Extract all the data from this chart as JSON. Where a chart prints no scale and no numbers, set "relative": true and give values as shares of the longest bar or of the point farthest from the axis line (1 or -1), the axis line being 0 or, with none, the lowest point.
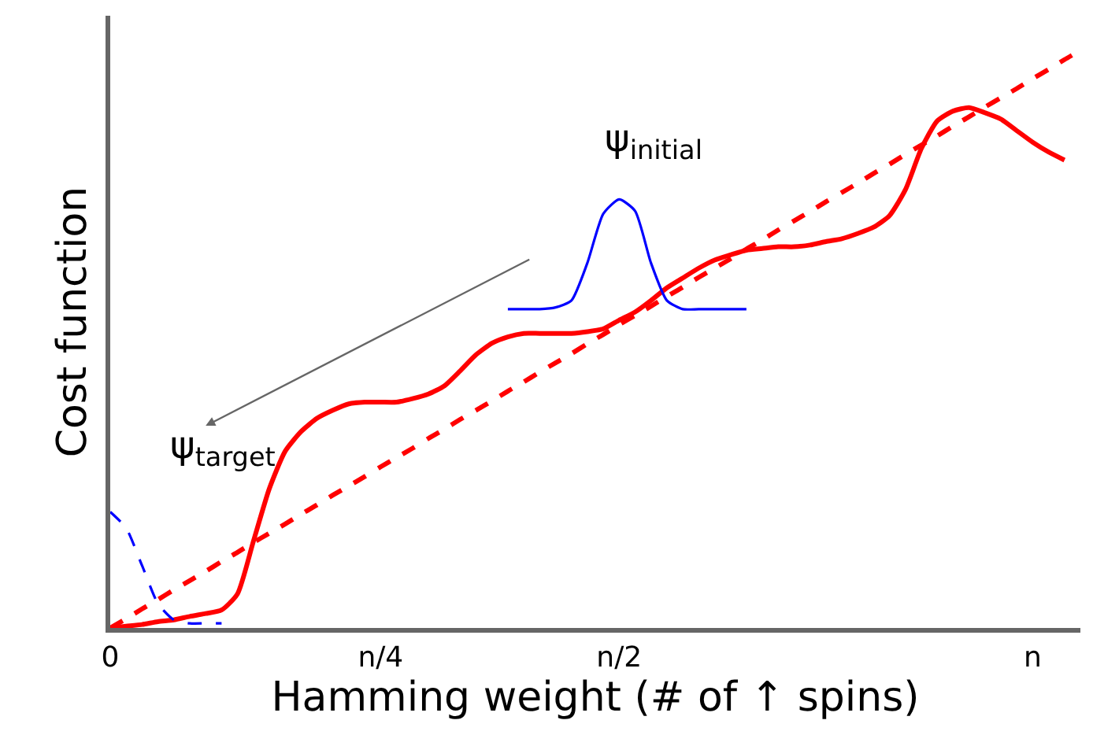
{
  "chart_data": {
    "type": "line",
    "relative": true,
    "xlabel": "Hamming weight (# of ↑ spins)",
    "ylabel": "Cost function",
    "categories": [
      "0",
      null,
      null,
      null,
      null,
      null,
      null,
      null,
      null,
      null,
      null,
      null,
      null,
      null,
      null,
      null,
      null,
      "n/4",
      null,
      null,
      null,
      null,
      null,
      null,
      null,
      null,
      null,
      null,
      null,
      null,
      null,
      null,
      "n/2",
      null,
      null,
      null,
      null,
      null,
      null,
      null,
      null,
      null,
      null,
      null,
      null,
      null,
      null,
      null,
      null,
      null,
      null,
      null,
      null,
      null,
      null,
      null,
      null,
      null,
      "n",
      null,
      null,
      null
    ],
    "tick_labels": "x",
    "marker": "none",
    "series": [
      {
        "color": "#ff0000",
        "line_style": "solid",
        "values": [
          0,
          0.003,
          0.006,
          0.011,
          0.014,
          0.02,
          0.025,
          0.031,
          0.059,
          0.15,
          0.241,
          0.306,
          0.34,
          0.363,
          0.377,
          0.388,
          0.391,
          0.391,
          0.391,
          0.397,
          0.405,
          0.419,
          0.445,
          0.473,
          0.493,
          0.504,
          0.51,
          0.51,
          0.51,
          0.51,
          0.513,
          0.518,
          0.533,
          0.547,
          0.567,
          0.589,
          0.606,
          0.623,
          0.637,
          0.646,
          0.654,
          0.657,
          0.66,
          0.66,
          0.663,
          0.669,
          0.674,
          0.683,
          0.694,
          0.714,
          0.759,
          0.83,
          0.878,
          0.895,
          0.901,
          0.892,
          0.881,
          0.861,
          0.841,
          0.824,
          0.81,
          null
        ]
      },
      {
        "color": "#ff0000",
        "line_style": "dashed",
        "values": [
          0,
          0.016,
          0.033,
          0.049,
          0.066,
          0.082,
          0.098,
          0.115,
          0.131,
          0.148,
          0.164,
          0.18,
          0.197,
          0.213,
          0.23,
          0.246,
          0.262,
          0.279,
          0.295,
          0.311,
          0.328,
          0.344,
          0.361,
          0.377,
          0.393,
          0.41,
          0.426,
          0.443,
          0.459,
          0.475,
          0.492,
          0.508,
          0.525,
          0.541,
          0.557,
          0.574,
          0.59,
          0.607,
          0.623,
          0.639,
          0.656,
          0.672,
          0.689,
          0.705,
          0.721,
          0.738,
          0.754,
          0.77,
          0.787,
          0.803,
          0.82,
          0.836,
          0.852,
          0.869,
          0.885,
          0.902,
          0.918,
          0.934,
          0.951,
          0.967,
          0.984,
          1.0
        ]
      },
      {
        "color": "#0000ff",
        "line_style": "solid",
        "values": [
          null,
          null,
          null,
          null,
          null,
          null,
          null,
          null,
          null,
          null,
          null,
          null,
          null,
          null,
          null,
          null,
          null,
          null,
          null,
          null,
          null,
          null,
          null,
          null,
          null,
          0.552,
          0.552,
          0.552,
          0.555,
          0.567,
          0.632,
          0.717,
          0.742,
          0.722,
          0.632,
          0.567,
          0.552,
          0.552,
          0.552,
          0.552,
          0.552,
          null,
          null,
          null,
          null,
          null,
          null,
          null,
          null,
          null,
          null,
          null,
          null,
          null,
          null,
          null,
          null,
          null,
          null,
          null,
          null,
          null
        ]
      },
      {
        "color": "#0000ff",
        "line_style": "dashed",
        "values": [
          0.201,
          0.173,
          0.108,
          0.042,
          0.014,
          0.008,
          0.008,
          0.008,
          null,
          null,
          null,
          null,
          null,
          null,
          null,
          null,
          null,
          null,
          null,
          null,
          null,
          null,
          null,
          null,
          null,
          null,
          null,
          null,
          null,
          null,
          null,
          null,
          null,
          null,
          null,
          null,
          null,
          null,
          null,
          null,
          null,
          null,
          null,
          null,
          null,
          null,
          null,
          null,
          null,
          null,
          null,
          null,
          null,
          null,
          null,
          null,
          null,
          null,
          null,
          null,
          null,
          null
        ]
      }
    ],
    "annotations": [
      "ψ$_{initial}$",
      "ψ$_{target}$"
    ]
  }
}
